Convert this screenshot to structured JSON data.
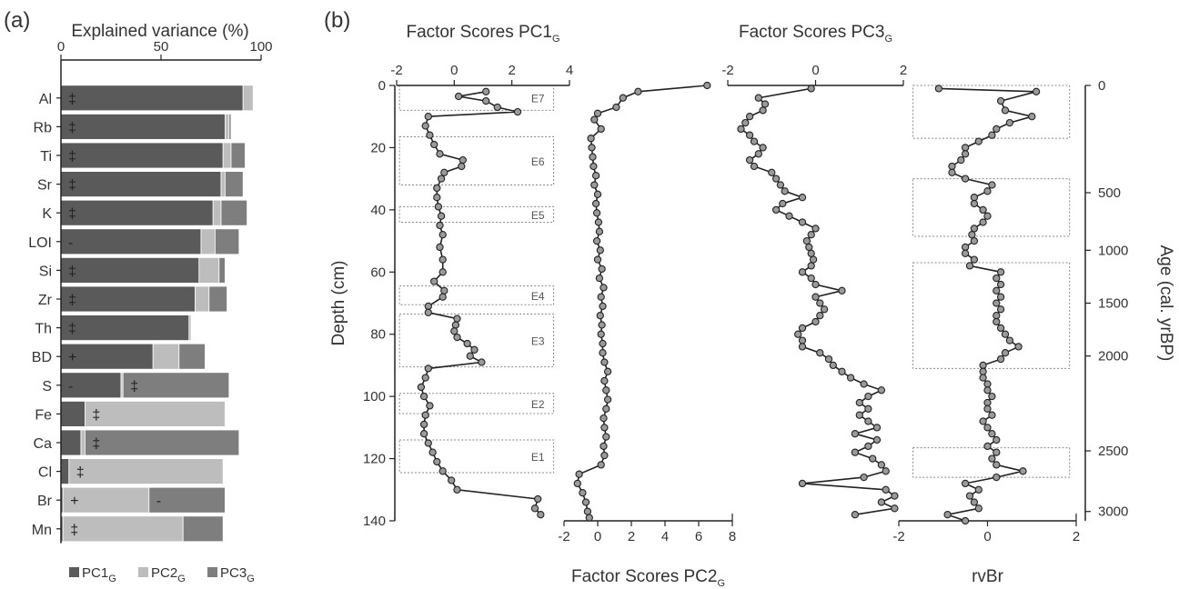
{
  "colors": {
    "pc1": "#5a5a5a",
    "pc2": "#bdbdbd",
    "pc3": "#7e7e7e",
    "points": "#9a9a9a",
    "line": "#222222",
    "box": "#888888"
  },
  "chart_data": [
    {
      "panel": "(a)",
      "type": "bar",
      "orientation": "horizontal",
      "stacked": true,
      "title": "Explained variance (%)",
      "xlim": [
        0,
        100
      ],
      "xticks": [
        "0",
        "50",
        "100"
      ],
      "categories": [
        "Al",
        "Rb",
        "Ti",
        "Sr",
        "K",
        "LOI",
        "Si",
        "Zr",
        "Th",
        "BD",
        "S",
        "Fe",
        "Ca",
        "Cl",
        "Br",
        "Mn"
      ],
      "series": [
        {
          "name": "PC1",
          "sub": "G",
          "values": [
            91,
            82,
            81,
            80,
            76,
            70,
            69,
            67,
            64,
            46,
            30,
            12,
            10,
            4,
            1,
            1
          ]
        },
        {
          "name": "PC2",
          "sub": "G",
          "values": [
            5,
            2,
            4,
            2,
            4,
            7,
            10,
            7,
            1,
            13,
            1,
            70,
            2,
            77,
            43,
            60
          ]
        },
        {
          "name": "PC3",
          "sub": "G",
          "values": [
            0,
            1,
            7,
            9,
            13,
            12,
            3,
            9,
            0,
            13,
            53,
            0,
            77,
            0,
            38,
            20
          ]
        }
      ],
      "loading_signs": [
        {
          "category": "Al",
          "sign": "‡",
          "series": "PC1"
        },
        {
          "category": "Rb",
          "sign": "‡",
          "series": "PC1"
        },
        {
          "category": "Ti",
          "sign": "‡",
          "series": "PC1"
        },
        {
          "category": "Sr",
          "sign": "‡",
          "series": "PC1"
        },
        {
          "category": "K",
          "sign": "‡",
          "series": "PC1"
        },
        {
          "category": "LOI",
          "sign": "-",
          "series": "PC1"
        },
        {
          "category": "Si",
          "sign": "‡",
          "series": "PC1"
        },
        {
          "category": "Zr",
          "sign": "‡",
          "series": "PC1"
        },
        {
          "category": "Th",
          "sign": "‡",
          "series": "PC1"
        },
        {
          "category": "BD",
          "sign": "+",
          "series": "PC1"
        },
        {
          "category": "S",
          "sign": "-",
          "series": "PC1"
        },
        {
          "category": "S",
          "sign": "‡",
          "series": "PC3"
        },
        {
          "category": "Fe",
          "sign": "‡",
          "series": "PC2"
        },
        {
          "category": "Ca",
          "sign": "‡",
          "series": "PC3"
        },
        {
          "category": "Cl",
          "sign": "‡",
          "series": "PC2"
        },
        {
          "category": "Br",
          "sign": "+",
          "series": "PC2"
        },
        {
          "category": "Br",
          "sign": "-",
          "series": "PC3"
        },
        {
          "category": "Mn",
          "sign": "‡",
          "series": "PC2"
        }
      ],
      "legend": {
        "placement": "bottom"
      }
    },
    {
      "panel": "(b)",
      "type": "line",
      "depth_axis": {
        "label": "Depth (cm)",
        "ylim": [
          0,
          140
        ],
        "ticks": [
          "0",
          "20",
          "40",
          "60",
          "80",
          "100",
          "120",
          "140"
        ]
      },
      "age_axis": {
        "label": "Age (cal. yrBP)",
        "ticks": [
          {
            "label": "0",
            "depth": 0
          },
          {
            "label": "500",
            "depth": 34.5
          },
          {
            "label": "1000",
            "depth": 53
          },
          {
            "label": "1500",
            "depth": 70
          },
          {
            "label": "2000",
            "depth": 87
          },
          {
            "label": "2500",
            "depth": 117.5
          },
          {
            "label": "3000",
            "depth": 137
          }
        ]
      },
      "events": [
        {
          "label": "E7",
          "top": 0,
          "bottom": 8
        },
        {
          "label": "E6",
          "top": 16.5,
          "bottom": 32
        },
        {
          "label": "E5",
          "top": 39,
          "bottom": 44
        },
        {
          "label": "E4",
          "top": 64.5,
          "bottom": 70.5
        },
        {
          "label": "E3",
          "top": 73.5,
          "bottom": 90.5
        },
        {
          "label": "E2",
          "top": 99,
          "bottom": 105.5
        },
        {
          "label": "E1",
          "top": 114,
          "bottom": 124.5
        }
      ],
      "rvbr_boxes": [
        {
          "top": 0,
          "bottom": 17
        },
        {
          "top": 30,
          "bottom": 48.5
        },
        {
          "top": 57,
          "bottom": 91
        },
        {
          "top": 116.5,
          "bottom": 126
        }
      ],
      "series": [
        {
          "name": "PC1",
          "sub": "G",
          "title": "Factor Scores PC1",
          "xlim": [
            -2,
            4
          ],
          "xticks": [
            "-2",
            "0",
            "2",
            "4"
          ],
          "depth": [
            2,
            3.5,
            5,
            7,
            8.5,
            10,
            13,
            16,
            19,
            22,
            24,
            26,
            28,
            30,
            33,
            36,
            39,
            42,
            45,
            48,
            52,
            56,
            60,
            63,
            66,
            68,
            71,
            73,
            75,
            77,
            79,
            81,
            83,
            85,
            87,
            89,
            91,
            94,
            97,
            100,
            103,
            106,
            109,
            112,
            115,
            118,
            121,
            124,
            127,
            130,
            133,
            136,
            138
          ],
          "values": [
            1.1,
            0.15,
            1.1,
            1.5,
            2.2,
            -0.9,
            -1.0,
            -0.85,
            -0.7,
            -0.5,
            0.3,
            0.25,
            -0.35,
            -0.45,
            -0.6,
            -0.6,
            -0.55,
            -0.45,
            -0.5,
            -0.4,
            -0.5,
            -0.4,
            -0.4,
            -0.7,
            -0.35,
            -0.4,
            -0.9,
            -0.9,
            0.1,
            0.05,
            0.0,
            0.1,
            0.45,
            0.7,
            0.55,
            0.95,
            -0.9,
            -1.0,
            -1.15,
            -1.05,
            -0.85,
            -1.0,
            -1.05,
            -1.05,
            -0.9,
            -0.75,
            -0.6,
            -0.4,
            -0.1,
            0.1,
            2.9,
            2.8,
            3.0
          ]
        },
        {
          "name": "PC2",
          "sub": "G",
          "title": "Factor Scores PC2",
          "xlim": [
            -2,
            8
          ],
          "xticks": [
            "-2",
            "0",
            "2",
            "4",
            "6",
            "8"
          ],
          "depth": [
            0,
            2,
            4,
            7,
            9,
            11,
            14,
            17,
            20,
            23,
            26,
            29,
            32,
            35,
            38,
            41,
            44,
            47,
            50,
            53,
            56,
            59,
            62,
            65,
            68,
            71,
            74,
            77,
            80,
            83,
            86,
            89,
            92,
            95,
            98,
            101,
            104,
            107,
            110,
            113,
            116,
            119,
            122,
            125,
            128,
            131,
            134,
            137,
            139
          ],
          "values": [
            6.5,
            2.4,
            1.5,
            1.1,
            0.0,
            -0.2,
            0.2,
            -0.4,
            -0.35,
            -0.3,
            -0.25,
            -0.1,
            -0.2,
            0.0,
            -0.1,
            -0.05,
            0.05,
            0.1,
            -0.05,
            0.15,
            0.0,
            0.25,
            0.1,
            0.35,
            0.2,
            0.3,
            0.15,
            0.25,
            0.2,
            0.3,
            0.3,
            0.4,
            0.6,
            0.4,
            0.5,
            0.6,
            0.5,
            0.35,
            0.4,
            0.5,
            0.35,
            0.4,
            0.2,
            -1.1,
            -1.2,
            -0.9,
            -0.7,
            -0.6,
            -0.5
          ]
        },
        {
          "name": "PC3",
          "sub": "G",
          "title": "Factor Scores PC3",
          "xlim": [
            -2,
            2
          ],
          "xticks": [
            "-2",
            "0",
            "2"
          ],
          "depth": [
            1,
            4,
            6,
            8,
            10,
            12,
            14,
            16,
            18,
            20,
            22,
            24,
            26,
            28,
            30,
            32,
            34,
            36,
            38,
            40,
            42,
            44,
            46,
            48,
            50,
            52,
            54,
            56,
            58,
            60,
            62,
            64,
            66,
            68,
            70,
            72,
            74,
            76,
            78,
            80,
            82,
            84,
            86,
            88,
            90,
            92,
            94,
            96,
            98,
            100,
            102,
            104,
            106,
            108,
            110,
            112,
            114,
            116,
            118,
            120,
            122,
            124,
            126,
            128,
            130,
            132,
            134,
            136,
            138
          ],
          "values": [
            -0.1,
            -1.3,
            -1.15,
            -1.2,
            -1.5,
            -1.6,
            -1.7,
            -1.5,
            -1.4,
            -1.2,
            -1.3,
            -1.5,
            -1.4,
            -1.0,
            -0.9,
            -0.8,
            -0.7,
            -0.3,
            -0.75,
            -0.9,
            -0.6,
            -0.3,
            0.0,
            -0.1,
            -0.2,
            -0.15,
            -0.1,
            -0.05,
            -0.1,
            -0.3,
            -0.1,
            0.0,
            0.6,
            0.0,
            0.1,
            0.2,
            0.1,
            0.0,
            -0.3,
            -0.4,
            -0.3,
            -0.3,
            0.1,
            0.3,
            0.4,
            0.6,
            0.8,
            1.1,
            1.5,
            1.2,
            1.0,
            1.2,
            1.0,
            1.2,
            1.4,
            0.9,
            1.4,
            1.2,
            0.9,
            1.3,
            1.5,
            1.6,
            1.1,
            -0.3,
            1.6,
            1.8,
            1.5,
            1.8,
            0.9
          ]
        },
        {
          "name": "rvBr",
          "title": "rvBr",
          "xlim": [
            -2,
            2
          ],
          "xticks": [
            "-2",
            "0",
            "2"
          ],
          "depth": [
            1,
            2,
            5,
            8,
            10,
            12,
            14,
            16,
            18,
            20,
            22,
            24,
            26,
            28,
            30,
            32,
            34,
            36,
            38,
            40,
            42,
            44,
            46,
            48,
            50,
            52,
            54,
            56,
            58,
            60,
            62,
            64,
            66,
            68,
            70,
            72,
            74,
            76,
            78,
            80,
            82,
            84,
            86,
            88,
            90,
            92,
            94,
            96,
            98,
            100,
            102,
            104,
            106,
            108,
            110,
            112,
            114,
            116,
            118,
            120,
            122,
            124,
            126,
            128,
            130,
            132,
            134,
            136,
            138,
            140
          ],
          "values": [
            -1.1,
            1.1,
            0.3,
            0.4,
            1.0,
            0.5,
            0.2,
            0.1,
            -0.2,
            -0.5,
            -0.5,
            -0.6,
            -0.8,
            -0.8,
            -0.5,
            0.1,
            0.0,
            -0.3,
            -0.3,
            -0.1,
            0.0,
            -0.1,
            -0.3,
            -0.35,
            -0.3,
            -0.5,
            -0.5,
            -0.3,
            -0.4,
            0.3,
            0.2,
            0.3,
            0.2,
            0.3,
            0.2,
            0.3,
            0.2,
            0.2,
            0.3,
            0.4,
            0.5,
            0.7,
            0.4,
            0.3,
            -0.1,
            -0.1,
            -0.1,
            0.0,
            0.0,
            0.1,
            0.0,
            0.0,
            0.1,
            -0.1,
            0.0,
            0.1,
            0.2,
            0.0,
            0.2,
            0.1,
            0.2,
            0.8,
            0.2,
            -0.5,
            -0.2,
            -0.4,
            -0.3,
            -0.2,
            -0.9,
            -0.5
          ]
        }
      ]
    }
  ]
}
